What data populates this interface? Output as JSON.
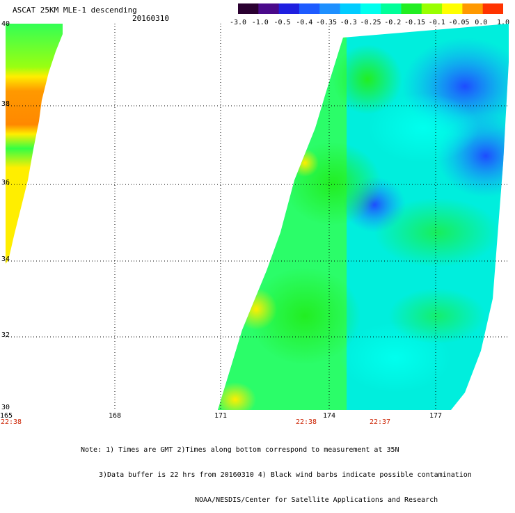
{
  "header": {
    "title": "ASCAT 25KM MLE-1 descending",
    "date": "20160310"
  },
  "colorbar": {
    "ticks": [
      "-3.0",
      "-1.0",
      "-0.5",
      "-0.4",
      "-0.35",
      "-0.3",
      "-0.25",
      "-0.2",
      "-0.15",
      "-0.1",
      "-0.05",
      "0.0",
      "1.0"
    ],
    "colors": [
      "#2a0030",
      "#4a0a8a",
      "#1f1fe0",
      "#1e5bff",
      "#1e90ff",
      "#00ccff",
      "#00ffee",
      "#00ff99",
      "#22ee22",
      "#99ff00",
      "#ffff00",
      "#ff9900",
      "#ff3300"
    ]
  },
  "axes": {
    "lat_labels": [
      "40",
      "38",
      "36",
      "34",
      "32",
      "30"
    ],
    "lon_labels": [
      "165",
      "168",
      "171",
      "174",
      "177"
    ]
  },
  "time_labels": [
    "22:38",
    "22:38",
    "22:37"
  ],
  "notes": {
    "line1": "Note: 1) Times are GMT 2)Times along bottom correspond to measurement at 35N",
    "line2": "3)Data buffer is 22 hrs from 20160310 4) Black wind barbs indicate possible contamination",
    "line3": "NOAA/NESDIS/Center for Satellite Applications and Research"
  }
}
